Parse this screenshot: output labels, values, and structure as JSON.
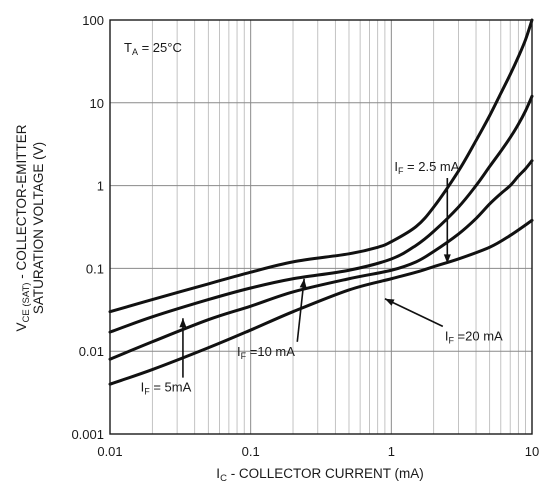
{
  "chart_data": {
    "type": "line",
    "x_scale": "log",
    "y_scale": "log",
    "xlim": [
      0.01,
      10
    ],
    "ylim": [
      0.001,
      100
    ],
    "grid": true,
    "condition": {
      "prefix": "T",
      "sub": "A",
      "rest": " = 25°C"
    },
    "xlabel": {
      "prefix": "I",
      "sub": "C",
      "rest": " - COLLECTOR CURRENT (mA)"
    },
    "ylabel": {
      "line1_prefix": "V",
      "line1_sub": "CE (SAT)",
      "line1_rest": " - COLLECTOR-EMITTER",
      "line2": "SATURATION VOLTAGE (V)"
    },
    "x_ticks": [
      {
        "value": 0.01,
        "label": "0.01"
      },
      {
        "value": 0.1,
        "label": "0.1"
      },
      {
        "value": 1,
        "label": "1"
      },
      {
        "value": 10,
        "label": "10"
      }
    ],
    "y_ticks": [
      {
        "value": 0.001,
        "label": "0.001"
      },
      {
        "value": 0.01,
        "label": "0.01"
      },
      {
        "value": 0.1,
        "label": "0.1"
      },
      {
        "value": 1,
        "label": "1"
      },
      {
        "value": 10,
        "label": "10"
      },
      {
        "value": 100,
        "label": "100"
      }
    ],
    "series": [
      {
        "name": "2.5 mA",
        "label_prefix": "I",
        "label_sub": "F",
        "label_rest": " = 2.5 mA",
        "x": [
          0.01,
          0.02,
          0.05,
          0.1,
          0.2,
          0.5,
          0.8,
          1,
          1.5,
          2,
          3,
          4,
          5,
          6,
          7,
          8,
          9,
          10
        ],
        "y": [
          0.03,
          0.042,
          0.065,
          0.09,
          0.12,
          0.15,
          0.18,
          0.21,
          0.32,
          0.55,
          1.5,
          3.5,
          7,
          13,
          22,
          36,
          58,
          100
        ]
      },
      {
        "name": "5mA",
        "label_prefix": "I",
        "label_sub": "F",
        "label_rest": " = 5mA",
        "x": [
          0.01,
          0.02,
          0.05,
          0.1,
          0.2,
          0.5,
          1,
          1.5,
          2,
          3,
          4,
          5,
          6,
          7,
          8,
          9,
          10
        ],
        "y": [
          0.017,
          0.026,
          0.042,
          0.058,
          0.075,
          0.095,
          0.13,
          0.19,
          0.28,
          0.55,
          1.0,
          1.7,
          2.6,
          3.8,
          5.5,
          8.0,
          12
        ]
      },
      {
        "name": "10 mA",
        "label_prefix": "I",
        "label_sub": "F",
        "label_rest": " =10 mA",
        "x": [
          0.01,
          0.02,
          0.05,
          0.1,
          0.2,
          0.5,
          1,
          1.5,
          2,
          3,
          4,
          5,
          6,
          7,
          8,
          9,
          10
        ],
        "y": [
          0.008,
          0.013,
          0.024,
          0.035,
          0.052,
          0.075,
          0.095,
          0.12,
          0.16,
          0.26,
          0.4,
          0.6,
          0.8,
          1.0,
          1.3,
          1.6,
          2.0
        ]
      },
      {
        "name": "20 mA",
        "label_prefix": "I",
        "label_sub": "F",
        "label_rest": " =20 mA",
        "x": [
          0.01,
          0.02,
          0.05,
          0.1,
          0.2,
          0.5,
          1,
          1.5,
          2,
          3,
          5,
          7,
          10
        ],
        "y": [
          0.004,
          0.006,
          0.011,
          0.018,
          0.03,
          0.055,
          0.075,
          0.09,
          0.105,
          0.13,
          0.18,
          0.25,
          0.38
        ]
      }
    ],
    "annotations": [
      {
        "series": 0,
        "text_at": [
          1.05,
          1.5
        ],
        "arrow_tip": [
          2.5,
          0.115
        ]
      },
      {
        "series": 1,
        "text_at": [
          0.0165,
          0.00325
        ],
        "arrow_tip": [
          0.033,
          0.025
        ]
      },
      {
        "series": 2,
        "text_at": [
          0.08,
          0.0088
        ],
        "arrow_tip": [
          0.24,
          0.075
        ]
      },
      {
        "series": 3,
        "text_at": [
          2.4,
          0.0135
        ],
        "arrow_tip": [
          0.9,
          0.043
        ]
      }
    ]
  }
}
